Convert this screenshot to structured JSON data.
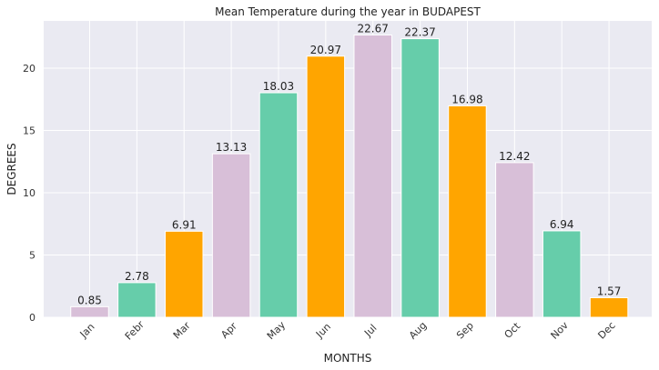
{
  "chart_data": {
    "type": "bar",
    "title": "Mean Temperature during the year in BUDAPEST",
    "xlabel": "MONTHS",
    "ylabel": "DEGREES",
    "categories": [
      "Jan",
      "Febr",
      "Mar",
      "Apr",
      "May",
      "Jun",
      "Jul",
      "Aug",
      "Sep",
      "Oct",
      "Nov",
      "Dec"
    ],
    "values": [
      0.85,
      2.78,
      6.91,
      13.13,
      18.03,
      20.97,
      22.67,
      22.37,
      16.98,
      12.42,
      6.94,
      1.57
    ],
    "value_labels": [
      "0.85",
      "2.78",
      "6.91",
      "13.13",
      "18.03",
      "20.97",
      "22.67",
      "22.37",
      "16.98",
      "12.42",
      "6.94",
      "1.57"
    ],
    "colors": [
      "#d8bfd8",
      "#66cdaa",
      "#ffa500",
      "#d8bfd8",
      "#66cdaa",
      "#ffa500",
      "#d8bfd8",
      "#66cdaa",
      "#ffa500",
      "#d8bfd8",
      "#66cdaa",
      "#ffa500"
    ],
    "yticks": [
      0,
      5,
      10,
      15,
      20
    ],
    "ylim": [
      0,
      23.8
    ],
    "grid": true,
    "background": "#eaeaf2"
  }
}
